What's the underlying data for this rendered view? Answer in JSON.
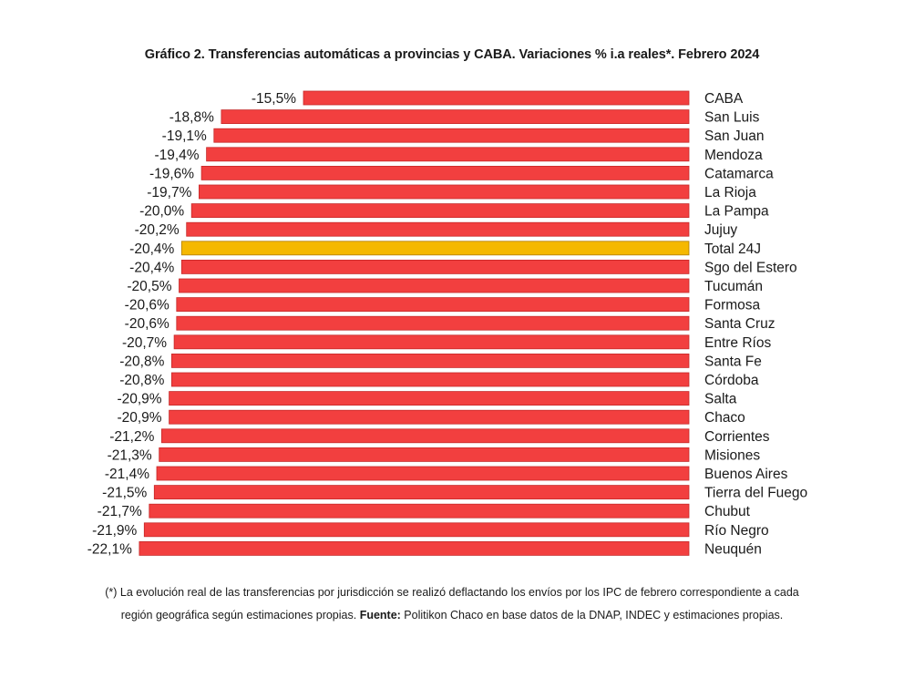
{
  "chart_data": {
    "type": "bar",
    "orientation": "horizontal",
    "title": "Gráfico 2. Transferencias automáticas a provincias y CABA. Variaciones % i.a reales*. Febrero 2024",
    "categories": [
      "CABA",
      "San Luis",
      "San Juan",
      "Mendoza",
      "Catamarca",
      "La Rioja",
      "La Pampa",
      "Jujuy",
      "Total 24J",
      "Sgo del Estero",
      "Tucumán",
      "Formosa",
      "Santa Cruz",
      "Entre Ríos",
      "Santa Fe",
      "Córdoba",
      "Salta",
      "Chaco",
      "Corrientes",
      "Misiones",
      "Buenos Aires",
      "Tierra del Fuego",
      "Chubut",
      "Río Negro",
      "Neuquén"
    ],
    "values": [
      -15.5,
      -18.8,
      -19.1,
      -19.4,
      -19.6,
      -19.7,
      -20.0,
      -20.2,
      -20.4,
      -20.4,
      -20.5,
      -20.6,
      -20.6,
      -20.7,
      -20.8,
      -20.8,
      -20.9,
      -20.9,
      -21.2,
      -21.3,
      -21.4,
      -21.5,
      -21.7,
      -21.9,
      -22.1
    ],
    "value_labels": [
      "-15,5%",
      "-18,8%",
      "-19,1%",
      "-19,4%",
      "-19,6%",
      "-19,7%",
      "-20,0%",
      "-20,2%",
      "-20,4%",
      "-20,4%",
      "-20,5%",
      "-20,6%",
      "-20,6%",
      "-20,7%",
      "-20,8%",
      "-20,8%",
      "-20,9%",
      "-20,9%",
      "-21,2%",
      "-21,3%",
      "-21,4%",
      "-21,5%",
      "-21,7%",
      "-21,9%",
      "-22,1%"
    ],
    "highlight_category": "Total 24J",
    "colors": {
      "bar": "#f23f3f",
      "highlight": "#f5b800",
      "bar_edge": "#c62828",
      "highlight_edge": "#b07d00"
    },
    "xlim": [
      -22.1,
      0
    ],
    "grid": false,
    "legend": "none"
  },
  "notes": {
    "line1": "(*) La evolución real de las transferencias por jurisdicción se realizó deflactando los envíos por los IPC de febrero correspondiente a cada",
    "line2_pre": "región geográfica según estimaciones propias. ",
    "source_label": "Fuente:",
    "line2_post": " Politikon Chaco en base datos de la DNAP, INDEC y estimaciones propias."
  }
}
